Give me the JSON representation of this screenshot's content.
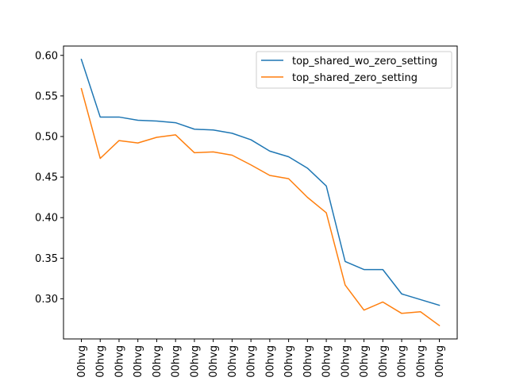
{
  "chart_data": {
    "type": "line",
    "title": "",
    "xlabel": "",
    "ylabel": "",
    "categories": [
      "00hvg",
      "00hvg",
      "00hvg",
      "00hvg",
      "00hvg",
      "00hvg",
      "00hvg",
      "00hvg",
      "00hvg",
      "00hvg",
      "00hvg",
      "00hvg",
      "00hvg",
      "00hvg",
      "00hvg",
      "00hvg",
      "00hvg",
      "00hvg",
      "00hvg",
      "00hvg"
    ],
    "series": [
      {
        "name": "top_shared_wo_zero_setting",
        "color": "#1f77b4",
        "values": [
          0.595,
          0.524,
          0.524,
          0.52,
          0.519,
          0.517,
          0.509,
          0.508,
          0.504,
          0.496,
          0.482,
          0.475,
          0.461,
          0.439,
          0.346,
          0.336,
          0.336,
          0.306,
          0.299,
          0.292
        ]
      },
      {
        "name": "top_shared_zero_setting",
        "color": "#ff7f0e",
        "values": [
          0.559,
          0.473,
          0.495,
          0.492,
          0.499,
          0.502,
          0.48,
          0.481,
          0.477,
          0.465,
          0.452,
          0.448,
          0.425,
          0.406,
          0.317,
          0.286,
          0.296,
          0.282,
          0.284,
          0.267
        ]
      }
    ],
    "y_ticks": [
      "0.60",
      "0.55",
      "0.50",
      "0.45",
      "0.40",
      "0.35",
      "0.30"
    ],
    "ylim": [
      0.2505,
      0.6115
    ],
    "grid": false,
    "legend_position": "top-right"
  }
}
